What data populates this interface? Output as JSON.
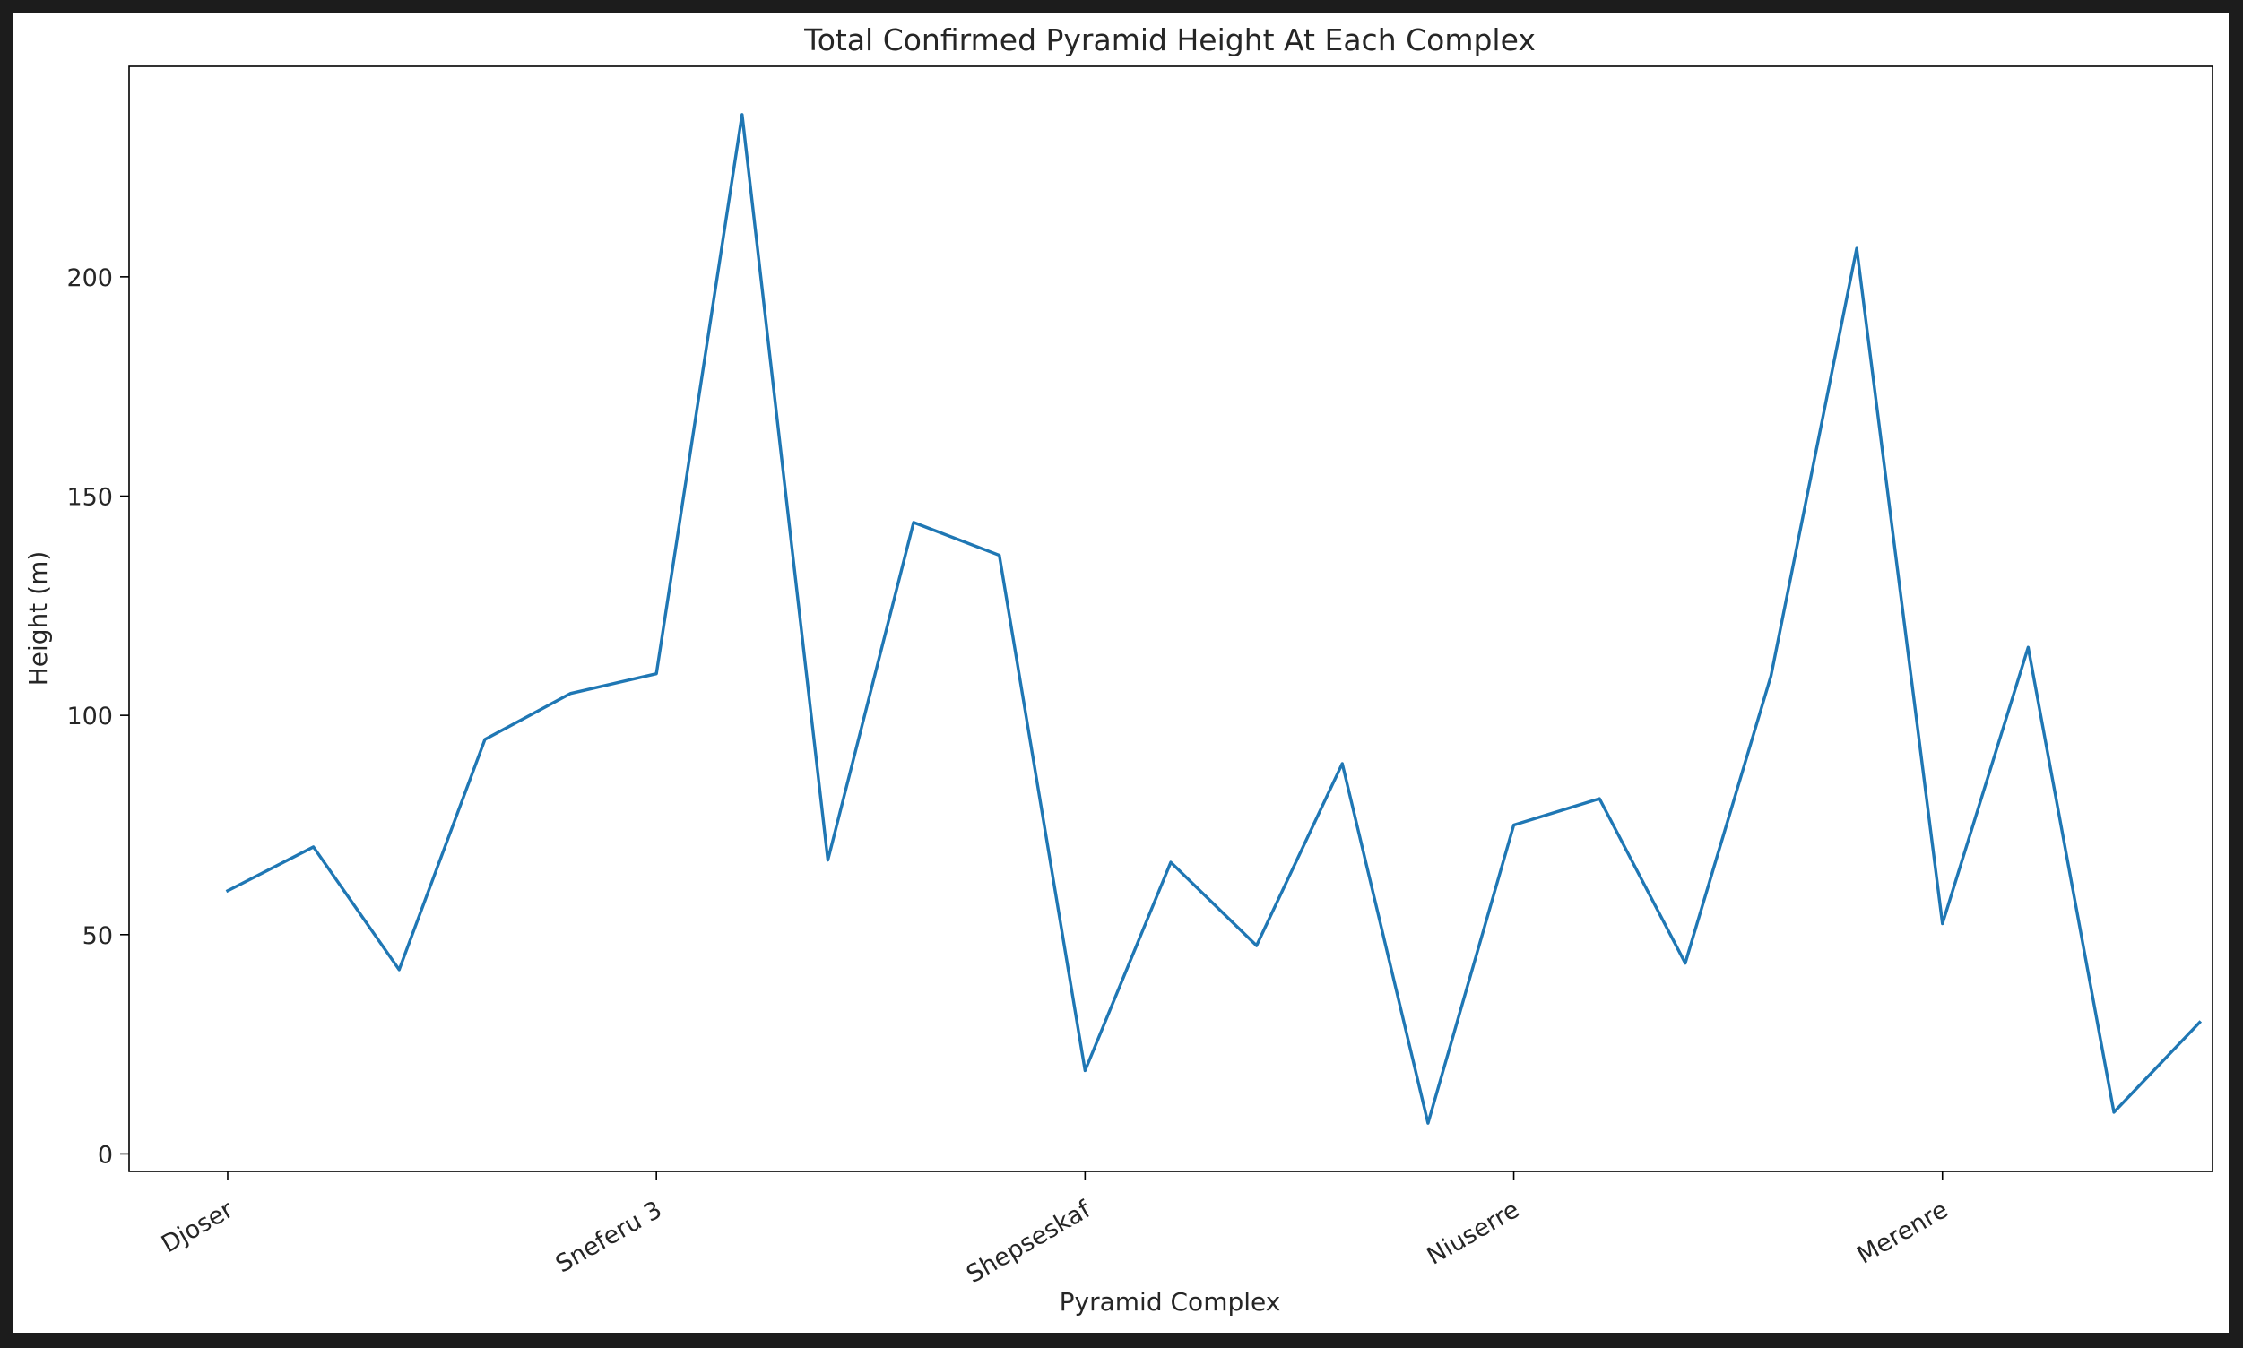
{
  "chart_data": {
    "type": "line",
    "title": "Total Confirmed Pyramid Height At Each Complex",
    "xlabel": "Pyramid Complex",
    "ylabel": "Height (m)",
    "x_tick_labels": [
      {
        "index": 0,
        "label": "Djoser"
      },
      {
        "index": 5,
        "label": "Sneferu 3"
      },
      {
        "index": 10,
        "label": "Shepseskaf"
      },
      {
        "index": 15,
        "label": "Niuserre"
      },
      {
        "index": 20,
        "label": "Merenre"
      }
    ],
    "y_ticks": [
      0,
      50,
      100,
      150,
      200
    ],
    "ylim": [
      -4,
      248
    ],
    "xlim": [
      -1.15,
      23.15
    ],
    "grid": false,
    "line_color": "#1f77b4",
    "series": [
      {
        "values": [
          60,
          70,
          42,
          94.5,
          105,
          109.5,
          237,
          67,
          144,
          136.5,
          19,
          66.5,
          47.5,
          89,
          7,
          75,
          81,
          43.5,
          109,
          206.5,
          52.5,
          115.5,
          9.5,
          30
        ]
      }
    ]
  }
}
